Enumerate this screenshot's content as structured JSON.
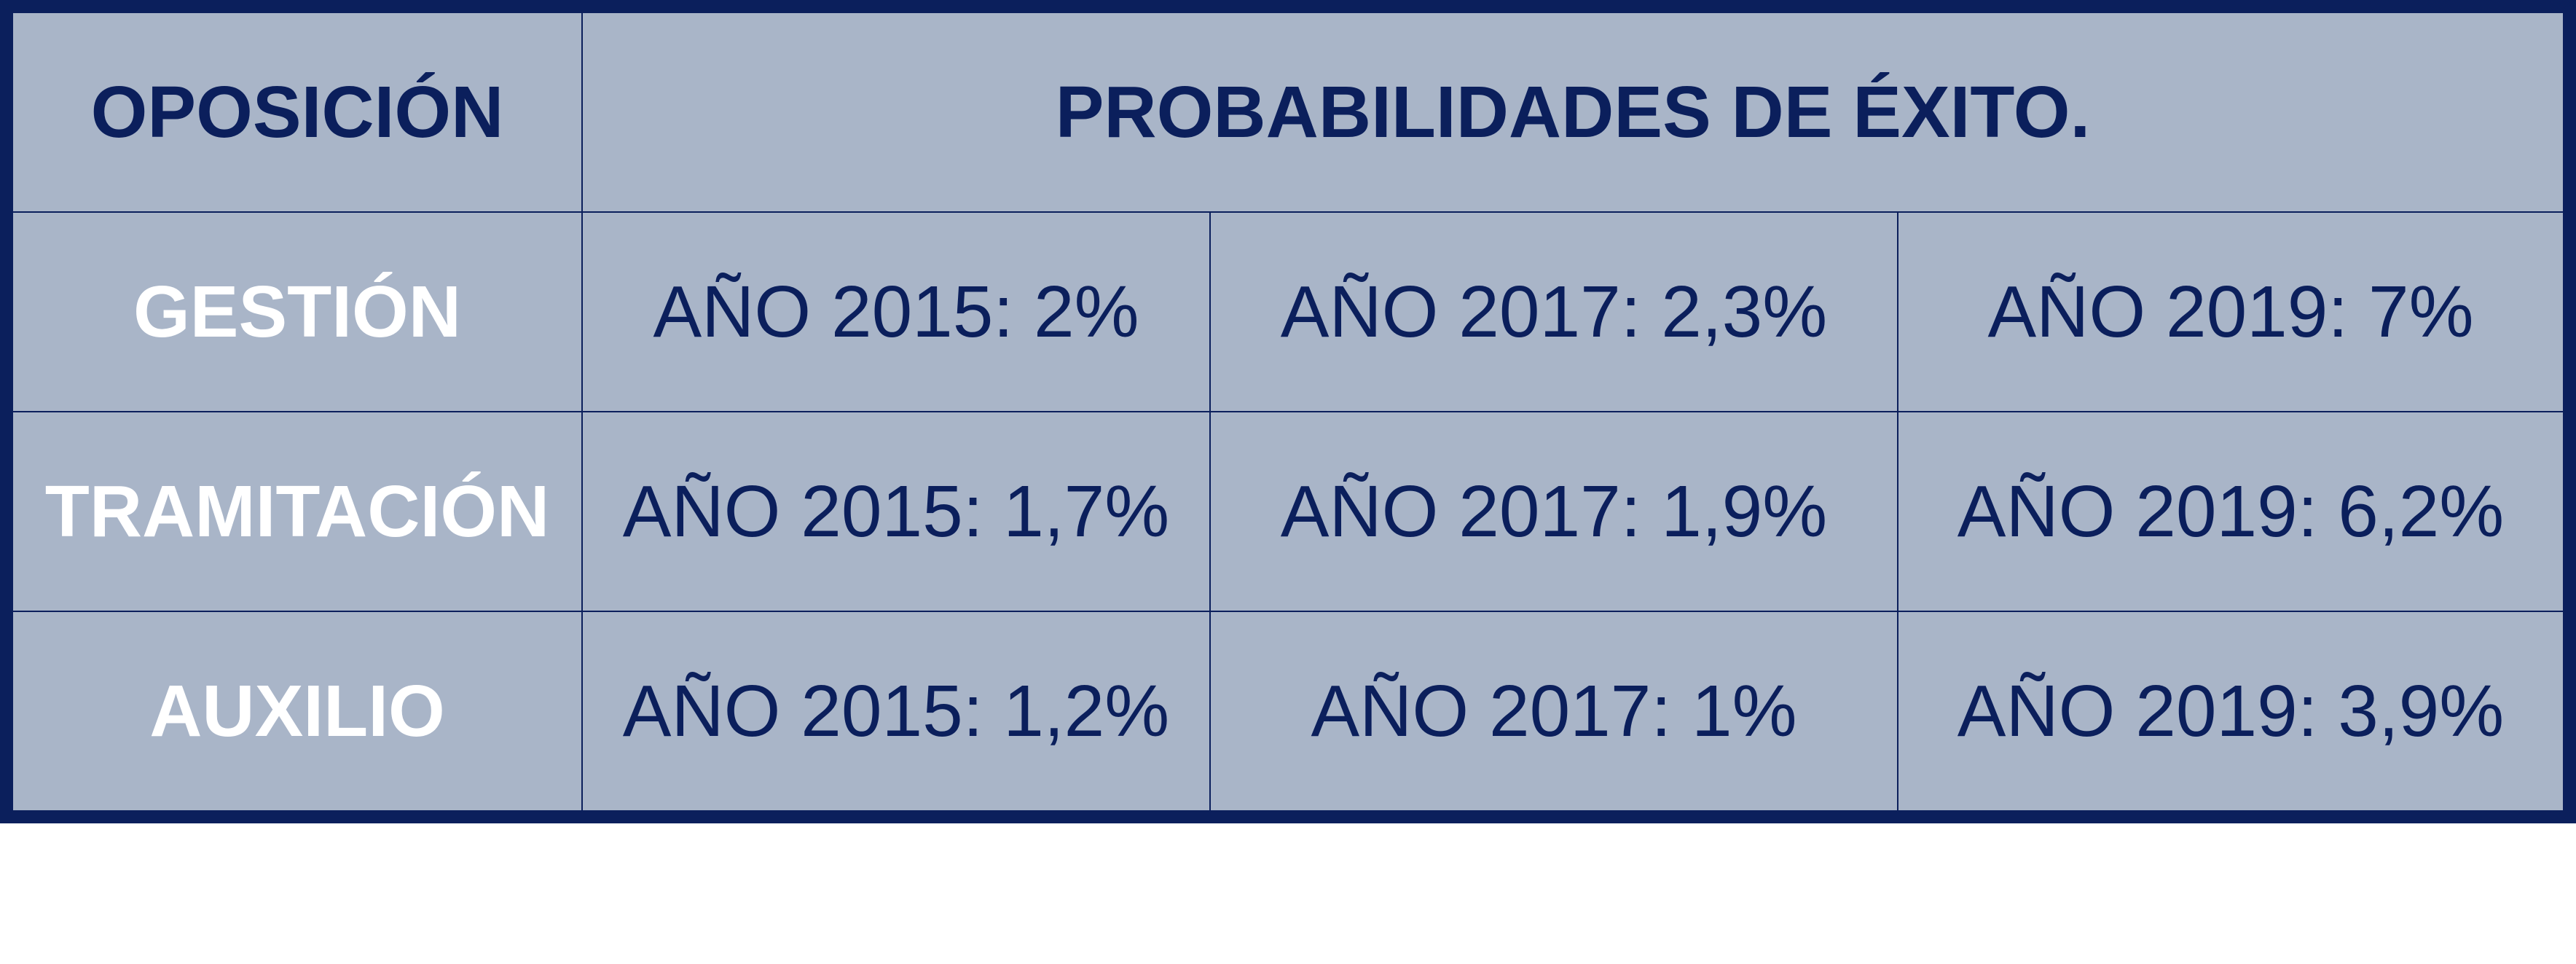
{
  "table": {
    "header": [
      "OPOSICIÓN",
      "PROBABILIDADES DE ÉXITO."
    ],
    "rows": [
      [
        "GESTIÓN",
        "AÑO 2015: 2%",
        "AÑO 2017: 2,3%",
        "AÑO 2019: 7%"
      ],
      [
        "TRAMITACIÓN",
        "AÑO 2015: 1,7%",
        "AÑO 2017: 1,9%",
        "AÑO 2019: 6,2%"
      ],
      [
        "AUXILIO",
        "AÑO 2015: 1,2%",
        "AÑO 2017: 1%",
        "AÑO 2019: 3,9%"
      ]
    ]
  }
}
